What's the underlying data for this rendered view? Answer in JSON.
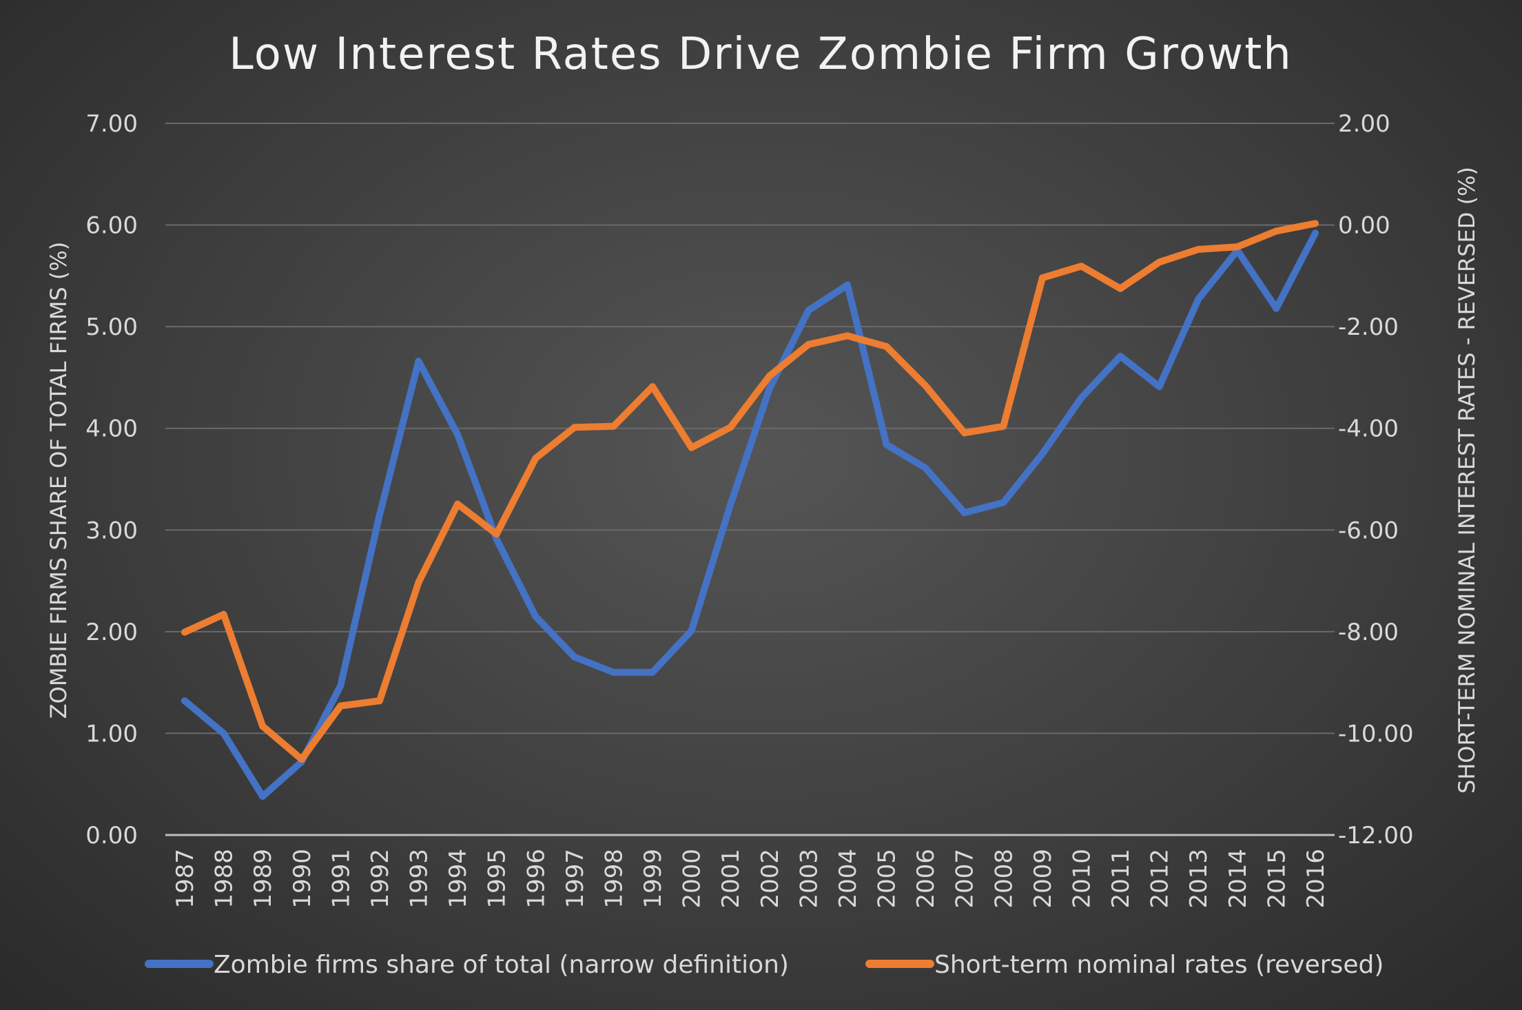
{
  "chart_data": {
    "type": "line",
    "title": "Low Interest Rates Drive Zombie Firm Growth",
    "ylabel": "ZOMBIE FIRMS SHARE OF TOTAL FIRMS (%)",
    "y2label": "SHORT-TERM NOMINAL INTEREST RATES - REVERSED (%)",
    "ylim": [
      0,
      7
    ],
    "y2lim": [
      -12,
      2
    ],
    "yticks": [
      "0.00",
      "1.00",
      "2.00",
      "3.00",
      "4.00",
      "5.00",
      "6.00",
      "7.00"
    ],
    "y2ticks": [
      "-12.00",
      "-10.00",
      "-8.00",
      "-6.00",
      "-4.00",
      "-2.00",
      "0.00",
      "2.00"
    ],
    "grid": true,
    "legend": "bottom",
    "x": [
      "1987",
      "1988",
      "1989",
      "1990",
      "1991",
      "1992",
      "1993",
      "1994",
      "1995",
      "1996",
      "1997",
      "1998",
      "1999",
      "2000",
      "2001",
      "2002",
      "2003",
      "2004",
      "2005",
      "2006",
      "2007",
      "2008",
      "2009",
      "2010",
      "2011",
      "2012",
      "2013",
      "2014",
      "2015",
      "2016"
    ],
    "series": [
      {
        "name": "Zombie firms share of total (narrow definition)",
        "axis": "left",
        "color": "#4472C4",
        "values": [
          1.32,
          1.0,
          0.38,
          0.72,
          1.47,
          3.15,
          4.66,
          3.94,
          2.91,
          2.15,
          1.75,
          1.6,
          1.6,
          2.01,
          3.25,
          4.39,
          5.16,
          5.41,
          3.84,
          3.61,
          3.17,
          3.27,
          3.75,
          4.3,
          4.71,
          4.41,
          5.27,
          5.75,
          5.18,
          5.92
        ]
      },
      {
        "name": "Short-term nominal rates (reversed)",
        "axis": "right",
        "color": "#ED7D31",
        "values": [
          -8.01,
          -7.66,
          -9.86,
          -10.51,
          -9.46,
          -9.36,
          -7.03,
          -5.49,
          -6.08,
          -4.59,
          -3.98,
          -3.96,
          -3.18,
          -4.38,
          -3.98,
          -2.97,
          -2.35,
          -2.18,
          -2.39,
          -3.16,
          -4.09,
          -3.96,
          -1.04,
          -0.81,
          -1.25,
          -0.73,
          -0.48,
          -0.43,
          -0.12,
          0.03
        ]
      }
    ]
  }
}
